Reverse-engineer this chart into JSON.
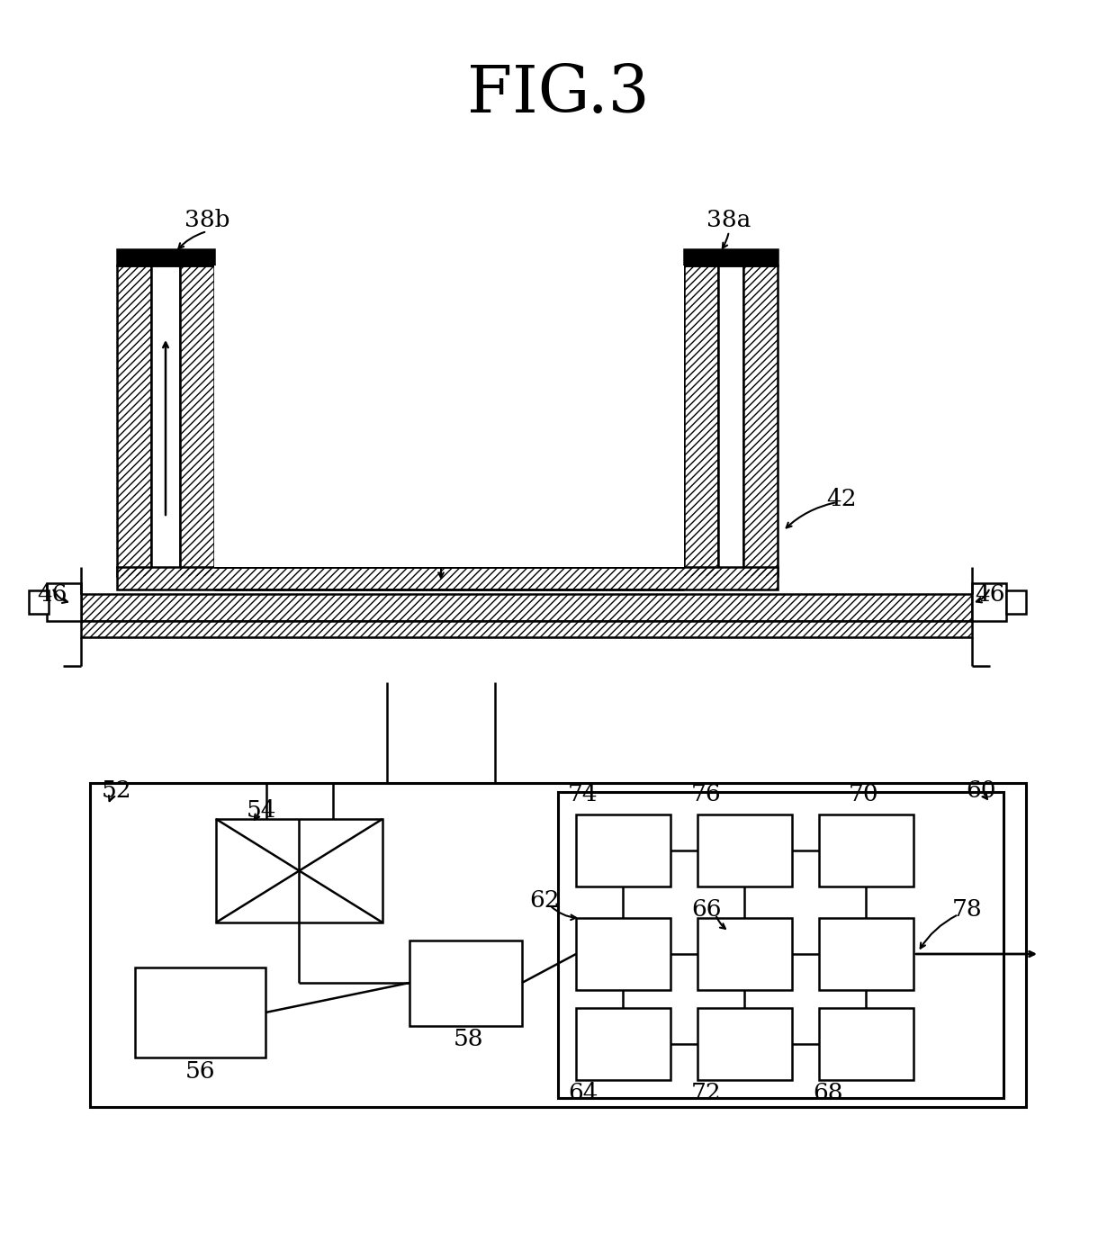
{
  "title": "FIG.3",
  "bg_color": "#ffffff",
  "line_color": "#000000",
  "fig_width": 12.4,
  "fig_height": 14.0,
  "dpi": 100
}
